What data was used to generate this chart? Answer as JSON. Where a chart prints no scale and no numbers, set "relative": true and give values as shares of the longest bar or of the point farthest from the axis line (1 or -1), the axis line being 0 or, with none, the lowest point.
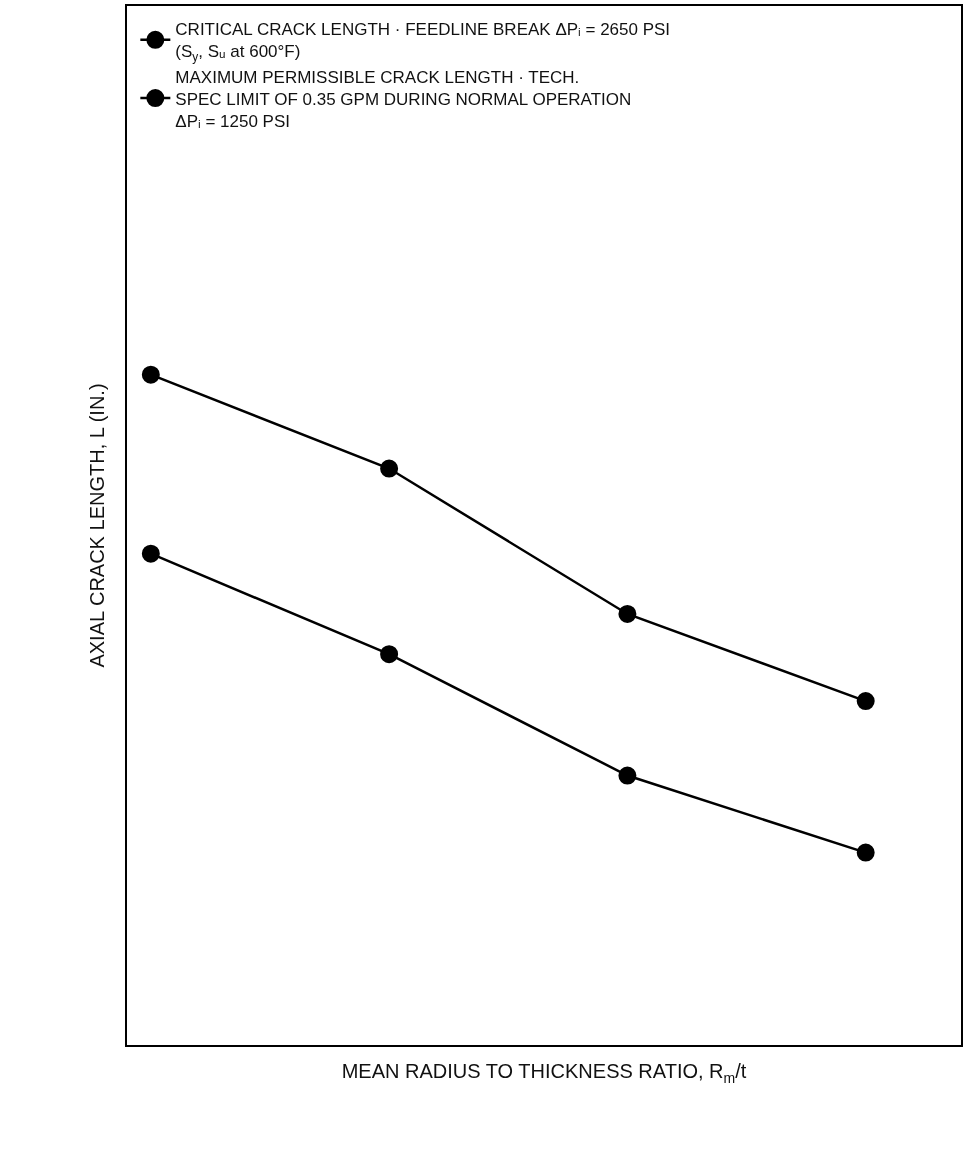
{
  "chart_data": {
    "type": "line",
    "relative": true,
    "xlabel": "MEAN RADIUS TO THICKNESS RATIO, R$_{m}$/t",
    "ylabel": "AXIAL CRACK LENGTH, L (IN.)",
    "categories": [
      null,
      null,
      null,
      null
    ],
    "legend": "top left",
    "marker": "circle",
    "series": [
      {
        "name": "CRITICAL CRACK LENGTH · FEEDLINE BREAK ΔPᵢ = 2650 PSI\n(S$_{y}$, Sᵤ at 600°F)",
        "color": "#000000",
        "values": [
          1.0,
          0.86,
          0.643,
          0.513
        ]
      },
      {
        "name": "MAXIMUM PERMISSIBLE CRACK LENGTH · TECH.\nSPEC LIMIT OF 0.35 GPM DURING NORMAL OPERATION\nΔPᵢ = 1250 PSI",
        "color": "#000000",
        "values": [
          0.733,
          0.583,
          0.402,
          0.287
        ]
      }
    ]
  }
}
